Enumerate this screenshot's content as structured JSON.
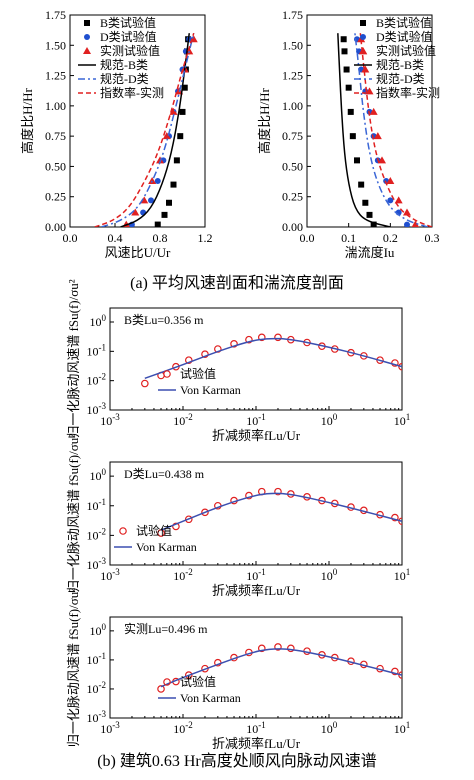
{
  "captions": {
    "a": "(a) 平均风速剖面和湍流度剖面",
    "b": "(b) 建筑0.63 Hr高度处顺风向脉动风速谱"
  },
  "colors": {
    "b_points": "#000000",
    "d_points": "#1f4fcf",
    "measured_points": "#e02020",
    "code_b": "#000000",
    "code_d": "#3a66d6",
    "power_law": "#e02020",
    "spectrum_points": "#e02020",
    "von_karman": "#3b4fb0"
  },
  "chart_data": [
    {
      "id": "wind-speed-profile",
      "type": "scatter",
      "xlabel": "风速比U/Ur",
      "ylabel": "高度比H/Hr",
      "xlim": [
        0,
        1.2
      ],
      "ylim": [
        0,
        1.75
      ],
      "xticks": [
        "0.0",
        "0.4",
        "0.8",
        "1.2"
      ],
      "yticks": [
        "0.00",
        "0.25",
        "0.50",
        "0.75",
        "1.00",
        "1.25",
        "1.50",
        "1.75"
      ],
      "legend_position": "top-left",
      "series": [
        {
          "name": "B类试验值",
          "kind": "scatter",
          "marker": "square",
          "x": [
            0.78,
            0.84,
            0.88,
            0.92,
            0.95,
            0.98,
            1.0,
            1.02,
            1.03,
            1.04,
            1.05
          ],
          "y": [
            0.02,
            0.1,
            0.2,
            0.35,
            0.55,
            0.75,
            0.95,
            1.15,
            1.3,
            1.45,
            1.55
          ]
        },
        {
          "name": "D类试验值",
          "kind": "scatter",
          "marker": "circle",
          "x": [
            0.55,
            0.65,
            0.72,
            0.78,
            0.83,
            0.88,
            0.92,
            0.96,
            1.0,
            1.03,
            1.06
          ],
          "y": [
            0.02,
            0.12,
            0.22,
            0.38,
            0.55,
            0.75,
            0.95,
            1.12,
            1.3,
            1.45,
            1.55
          ]
        },
        {
          "name": "实测试验值",
          "kind": "scatter",
          "marker": "triangle",
          "x": [
            0.5,
            0.58,
            0.66,
            0.73,
            0.8,
            0.86,
            0.92,
            0.97,
            1.02,
            1.06,
            1.1
          ],
          "y": [
            0.02,
            0.12,
            0.22,
            0.38,
            0.55,
            0.75,
            0.95,
            1.12,
            1.3,
            1.45,
            1.55
          ]
        },
        {
          "name": "规范-B类",
          "kind": "line",
          "dash": "solid",
          "x": [
            0.45,
            0.6,
            0.72,
            0.82,
            0.9,
            0.97,
            1.02,
            1.06
          ],
          "y": [
            0.0,
            0.05,
            0.15,
            0.35,
            0.6,
            0.95,
            1.3,
            1.6
          ]
        },
        {
          "name": "规范-D类",
          "kind": "line",
          "dash": "dashdot",
          "x": [
            0.28,
            0.45,
            0.6,
            0.72,
            0.83,
            0.93,
            1.02,
            1.1
          ],
          "y": [
            0.0,
            0.05,
            0.15,
            0.35,
            0.6,
            0.95,
            1.3,
            1.6
          ]
        },
        {
          "name": "指数率-实测",
          "kind": "line",
          "dash": "dashed",
          "x": [
            0.22,
            0.38,
            0.52,
            0.65,
            0.78,
            0.9,
            1.0,
            1.1
          ],
          "y": [
            0.0,
            0.05,
            0.15,
            0.35,
            0.6,
            0.95,
            1.3,
            1.6
          ]
        }
      ]
    },
    {
      "id": "turbulence-profile",
      "type": "scatter",
      "xlabel": "湍流度Iu",
      "ylabel": "高度比H/Hr",
      "xlim": [
        0,
        0.3
      ],
      "ylim": [
        0,
        1.75
      ],
      "xticks": [
        "0.0",
        "0.1",
        "0.2",
        "0.3"
      ],
      "yticks": [
        "0.00",
        "0.25",
        "0.50",
        "0.75",
        "1.00",
        "1.25",
        "1.50",
        "1.75"
      ],
      "legend_position": "top-right",
      "series": [
        {
          "name": "B类试验值",
          "kind": "scatter",
          "marker": "square",
          "x": [
            0.16,
            0.15,
            0.14,
            0.13,
            0.12,
            0.11,
            0.105,
            0.1,
            0.095,
            0.09,
            0.088
          ],
          "y": [
            0.02,
            0.1,
            0.2,
            0.35,
            0.55,
            0.75,
            0.95,
            1.15,
            1.3,
            1.45,
            1.55
          ]
        },
        {
          "name": "D类试验值",
          "kind": "scatter",
          "marker": "circle",
          "x": [
            0.24,
            0.22,
            0.2,
            0.19,
            0.17,
            0.16,
            0.15,
            0.14,
            0.13,
            0.125,
            0.12
          ],
          "y": [
            0.02,
            0.12,
            0.22,
            0.38,
            0.55,
            0.75,
            0.95,
            1.12,
            1.3,
            1.45,
            1.55
          ]
        },
        {
          "name": "实测试验值",
          "kind": "scatter",
          "marker": "triangle",
          "x": [
            0.26,
            0.24,
            0.22,
            0.2,
            0.18,
            0.17,
            0.16,
            0.15,
            0.14,
            0.135,
            0.13
          ],
          "y": [
            0.02,
            0.12,
            0.22,
            0.38,
            0.55,
            0.75,
            0.95,
            1.12,
            1.3,
            1.45,
            1.55
          ]
        },
        {
          "name": "规范-B类",
          "kind": "line",
          "dash": "solid",
          "x": [
            0.2,
            0.14,
            0.115,
            0.1,
            0.09,
            0.083,
            0.078,
            0.074
          ],
          "y": [
            0.0,
            0.05,
            0.15,
            0.35,
            0.6,
            0.95,
            1.3,
            1.6
          ]
        },
        {
          "name": "规范-D类",
          "kind": "line",
          "dash": "dashdot",
          "x": [
            0.29,
            0.24,
            0.2,
            0.17,
            0.15,
            0.135,
            0.125,
            0.115
          ],
          "y": [
            0.0,
            0.05,
            0.15,
            0.35,
            0.6,
            0.95,
            1.3,
            1.6
          ]
        },
        {
          "name": "指数率-实测",
          "kind": "line",
          "dash": "dashed",
          "x": [
            0.3,
            0.26,
            0.22,
            0.19,
            0.165,
            0.148,
            0.137,
            0.128
          ],
          "y": [
            0.0,
            0.05,
            0.15,
            0.35,
            0.6,
            0.95,
            1.3,
            1.6
          ]
        }
      ]
    },
    {
      "id": "spectrum-b",
      "type": "scatter",
      "annotation": "B类Lu=0.356 m",
      "xlabel": "折减频率fLu/Ur",
      "ylabel": "归一化脉动风速谱 fSu(f)/σu²",
      "xscale": "log",
      "yscale": "log",
      "xlim": [
        0.001,
        10
      ],
      "ylim": [
        0.001,
        3
      ],
      "xticks": [
        "10-3",
        "10-2",
        "10-1",
        "100",
        "101"
      ],
      "yticks": [
        "10-3",
        "10-2",
        "10-1",
        "100"
      ],
      "legend_position": "bottom-center",
      "series": [
        {
          "name": "试验值",
          "kind": "scatter",
          "marker": "circle",
          "x": [
            0.003,
            0.005,
            0.008,
            0.012,
            0.02,
            0.03,
            0.05,
            0.08,
            0.12,
            0.2,
            0.3,
            0.5,
            0.8,
            1.2,
            2,
            3,
            5,
            8,
            10
          ],
          "y": [
            0.008,
            0.015,
            0.03,
            0.05,
            0.08,
            0.12,
            0.18,
            0.25,
            0.3,
            0.3,
            0.25,
            0.2,
            0.15,
            0.12,
            0.09,
            0.07,
            0.05,
            0.04,
            0.03
          ]
        },
        {
          "name": "Von Karman",
          "kind": "line",
          "dash": "solid",
          "x": [
            0.003,
            0.01,
            0.03,
            0.08,
            0.15,
            0.3,
            1,
            3,
            10
          ],
          "y": [
            0.012,
            0.035,
            0.1,
            0.22,
            0.28,
            0.26,
            0.14,
            0.07,
            0.03
          ]
        }
      ]
    },
    {
      "id": "spectrum-d",
      "type": "scatter",
      "annotation": "D类Lu=0.438 m",
      "xlabel": "折减频率fLu/Ur",
      "ylabel": "归一化脉动风速谱 fSu(f)/σu²",
      "xscale": "log",
      "yscale": "log",
      "xlim": [
        0.001,
        10
      ],
      "ylim": [
        0.001,
        3
      ],
      "xticks": [
        "10-3",
        "10-2",
        "10-1",
        "100",
        "101"
      ],
      "yticks": [
        "10-3",
        "10-2",
        "10-1",
        "100"
      ],
      "legend_position": "bottom-left",
      "series": [
        {
          "name": "试验值",
          "kind": "scatter",
          "marker": "circle",
          "x": [
            0.005,
            0.008,
            0.012,
            0.02,
            0.03,
            0.05,
            0.08,
            0.12,
            0.2,
            0.3,
            0.5,
            0.8,
            1.2,
            2,
            3,
            5,
            8,
            10
          ],
          "y": [
            0.012,
            0.02,
            0.035,
            0.06,
            0.1,
            0.15,
            0.22,
            0.3,
            0.3,
            0.25,
            0.2,
            0.15,
            0.12,
            0.09,
            0.07,
            0.05,
            0.04,
            0.03
          ]
        },
        {
          "name": "Von Karman",
          "kind": "line",
          "dash": "solid",
          "x": [
            0.005,
            0.01,
            0.03,
            0.08,
            0.15,
            0.3,
            1,
            3,
            10
          ],
          "y": [
            0.015,
            0.03,
            0.09,
            0.2,
            0.27,
            0.25,
            0.13,
            0.065,
            0.03
          ]
        }
      ]
    },
    {
      "id": "spectrum-measured",
      "type": "scatter",
      "annotation": "实测Lu=0.496 m",
      "xlabel": "折减频率fLu/Ur",
      "ylabel": "归一化脉动风速谱 fSu(f)/σu²",
      "xscale": "log",
      "yscale": "log",
      "xlim": [
        0.001,
        10
      ],
      "ylim": [
        0.001,
        3
      ],
      "xticks": [
        "10-3",
        "10-2",
        "10-1",
        "100",
        "101"
      ],
      "yticks": [
        "10-3",
        "10-2",
        "10-1",
        "100"
      ],
      "legend_position": "bottom-center",
      "series": [
        {
          "name": "试验值",
          "kind": "scatter",
          "marker": "circle",
          "x": [
            0.005,
            0.008,
            0.012,
            0.02,
            0.03,
            0.05,
            0.08,
            0.12,
            0.2,
            0.3,
            0.5,
            0.8,
            1.2,
            2,
            3,
            5,
            8,
            10
          ],
          "y": [
            0.01,
            0.018,
            0.03,
            0.05,
            0.08,
            0.12,
            0.18,
            0.25,
            0.28,
            0.25,
            0.2,
            0.15,
            0.12,
            0.09,
            0.07,
            0.05,
            0.04,
            0.03
          ]
        },
        {
          "name": "Von Karman",
          "kind": "line",
          "dash": "solid",
          "x": [
            0.005,
            0.01,
            0.03,
            0.08,
            0.15,
            0.3,
            1,
            3,
            10
          ],
          "y": [
            0.012,
            0.025,
            0.07,
            0.17,
            0.24,
            0.24,
            0.13,
            0.065,
            0.03
          ]
        }
      ]
    }
  ]
}
